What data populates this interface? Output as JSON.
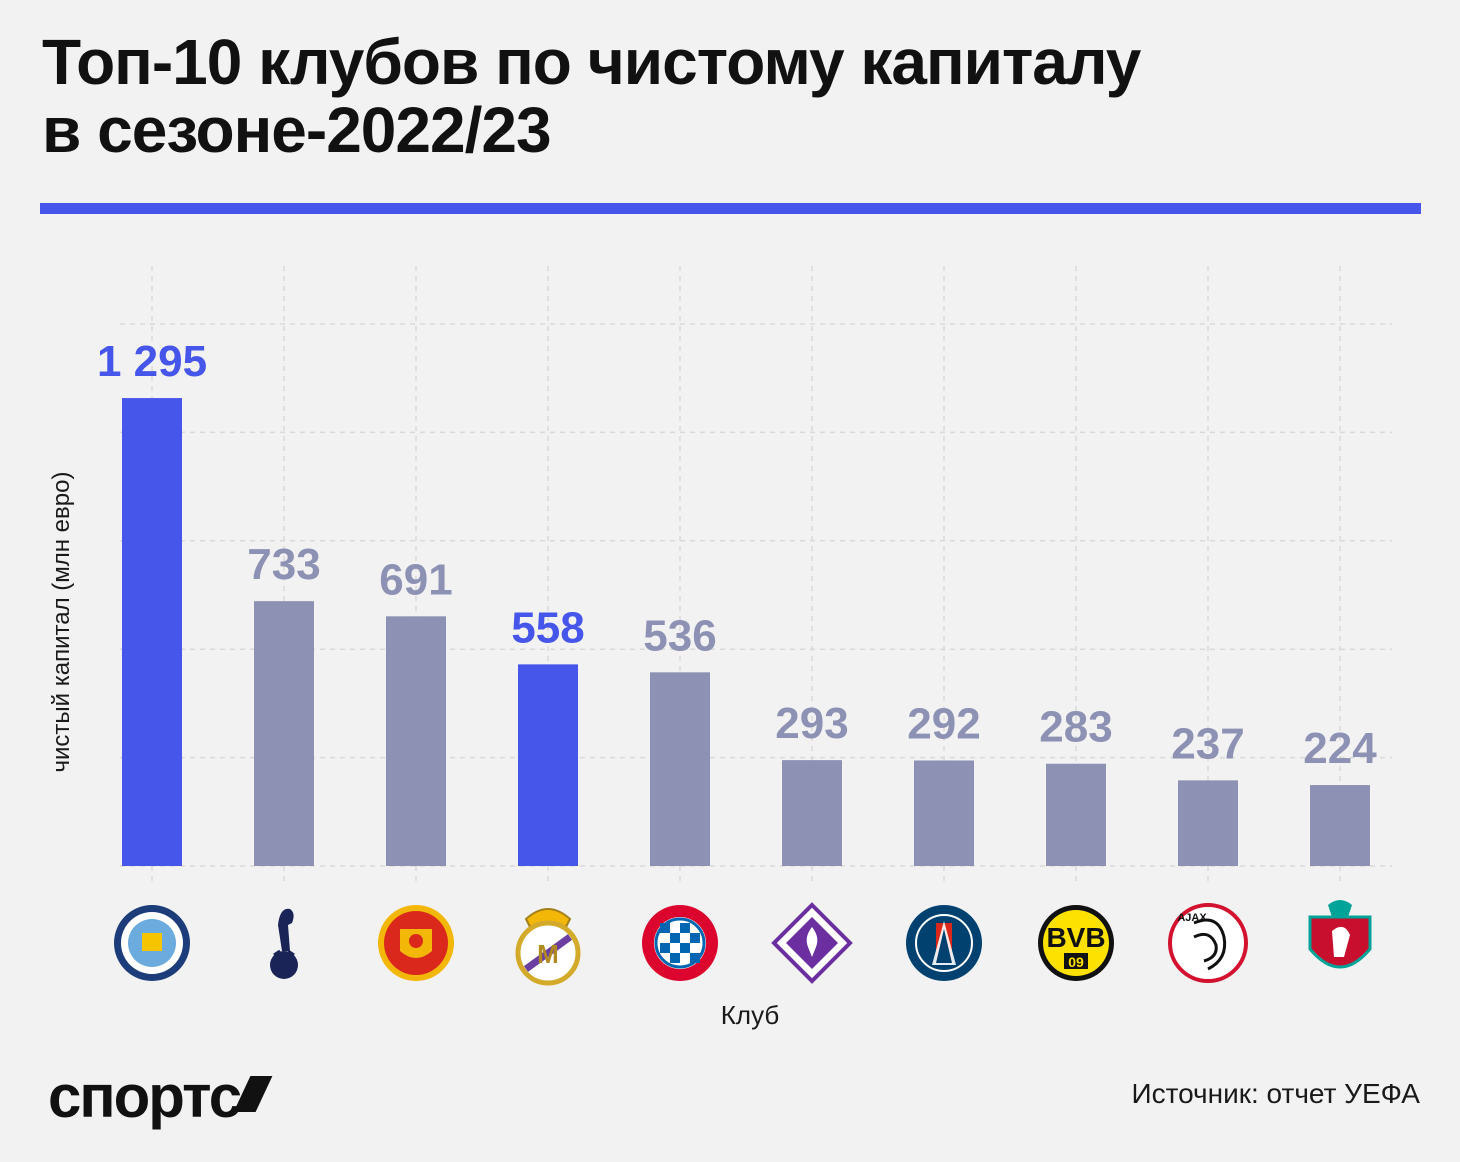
{
  "header": {
    "title_line1": "Топ-10 клубов по чистому капиталу",
    "title_line2": "в сезоне-2022/23"
  },
  "footer": {
    "brand": "спортс",
    "source": "Источник: отчет УЕФА"
  },
  "colors": {
    "accent": "#4655ea",
    "bar_default": "#8d91b3",
    "label_default": "#8d91b3",
    "grid": "#d9d9d9",
    "background": "#f2f2f2"
  },
  "chart_data": {
    "type": "bar",
    "xlabel": "Клуб",
    "ylabel": "чистый капитал (млн евро)",
    "ylim": [
      0,
      1500
    ],
    "grid": true,
    "categories": [
      "manchester-city-logo",
      "tottenham-logo",
      "manchester-united-logo",
      "real-madrid-logo",
      "bayern-munchen-logo",
      "fiorentina-logo",
      "psg-logo",
      "borussia-dortmund-logo",
      "ajax-logo",
      "liverpool-logo"
    ],
    "values": [
      1295,
      733,
      691,
      558,
      536,
      293,
      292,
      283,
      237,
      224
    ],
    "value_labels": [
      "1 295",
      "733",
      "691",
      "558",
      "536",
      "293",
      "292",
      "283",
      "237",
      "224"
    ],
    "highlighted": [
      true,
      false,
      false,
      true,
      false,
      false,
      false,
      false,
      false,
      false
    ]
  }
}
